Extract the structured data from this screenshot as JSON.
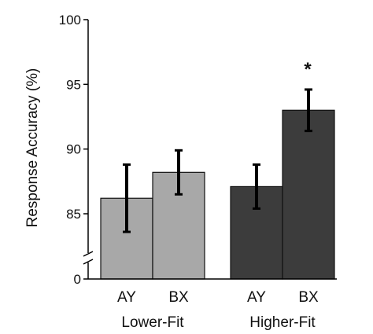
{
  "chart_data": {
    "type": "bar",
    "title": "",
    "xlabel": "",
    "ylabel": "Response Accuracy (%)",
    "ylim": [
      0,
      100
    ],
    "axis_break": true,
    "yticks": [
      {
        "value": 0,
        "label": "0"
      },
      {
        "value": 85,
        "label": "85"
      },
      {
        "value": 90,
        "label": "90"
      },
      {
        "value": 95,
        "label": "95"
      },
      {
        "value": 100,
        "label": "100"
      }
    ],
    "groups": [
      {
        "label": "Lower-Fit",
        "color": "#a8a8a8"
      },
      {
        "label": "Higher-Fit",
        "color": "#3c3c3c"
      }
    ],
    "bars": [
      {
        "group": 0,
        "category": "AY",
        "value": 86.2,
        "error": 2.6
      },
      {
        "group": 0,
        "category": "BX",
        "value": 88.2,
        "error": 1.7
      },
      {
        "group": 1,
        "category": "AY",
        "value": 87.1,
        "error": 1.7
      },
      {
        "group": 1,
        "category": "BX",
        "value": 93.0,
        "error": 1.6,
        "annotation": "*"
      }
    ],
    "grid": false,
    "legend": "none"
  }
}
